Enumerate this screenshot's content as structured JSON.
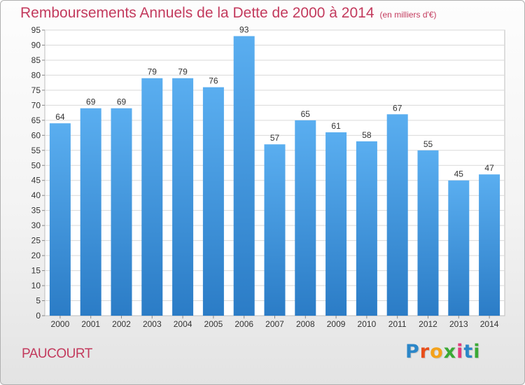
{
  "header": {
    "title": "Remboursements Annuels de la Dette de 2000 à 2014",
    "subtitle": "(en milliers d'€)"
  },
  "footer": {
    "place": "PAUCOURT",
    "brand": [
      "P",
      "r",
      "o",
      "x",
      "i",
      "t",
      "i"
    ],
    "brand_colors": [
      "#2b86c8",
      "#e84e1b",
      "#f4a21a",
      "#3aa935",
      "#e23a7a",
      "#2b86c8",
      "#3aa935"
    ]
  },
  "colors": {
    "bar_top": "#5aaef0",
    "bar_bottom": "#2b7cc6",
    "title": "#c33a5d",
    "grid": "#d9d9d9"
  },
  "chart_data": {
    "type": "bar",
    "title": "Remboursements Annuels de la Dette de 2000 à 2014",
    "subtitle": "(en milliers d'€)",
    "categories": [
      "2000",
      "2001",
      "2002",
      "2003",
      "2004",
      "2005",
      "2006",
      "2007",
      "2008",
      "2009",
      "2010",
      "2011",
      "2012",
      "2013",
      "2014"
    ],
    "values": [
      64,
      69,
      69,
      79,
      79,
      76,
      93,
      57,
      65,
      61,
      58,
      67,
      55,
      45,
      47
    ],
    "ylim": [
      0,
      95
    ],
    "yticks": [
      0,
      5,
      10,
      15,
      20,
      25,
      30,
      35,
      40,
      45,
      50,
      55,
      60,
      65,
      70,
      75,
      80,
      85,
      90,
      95
    ],
    "grid": true,
    "legend": "none"
  }
}
